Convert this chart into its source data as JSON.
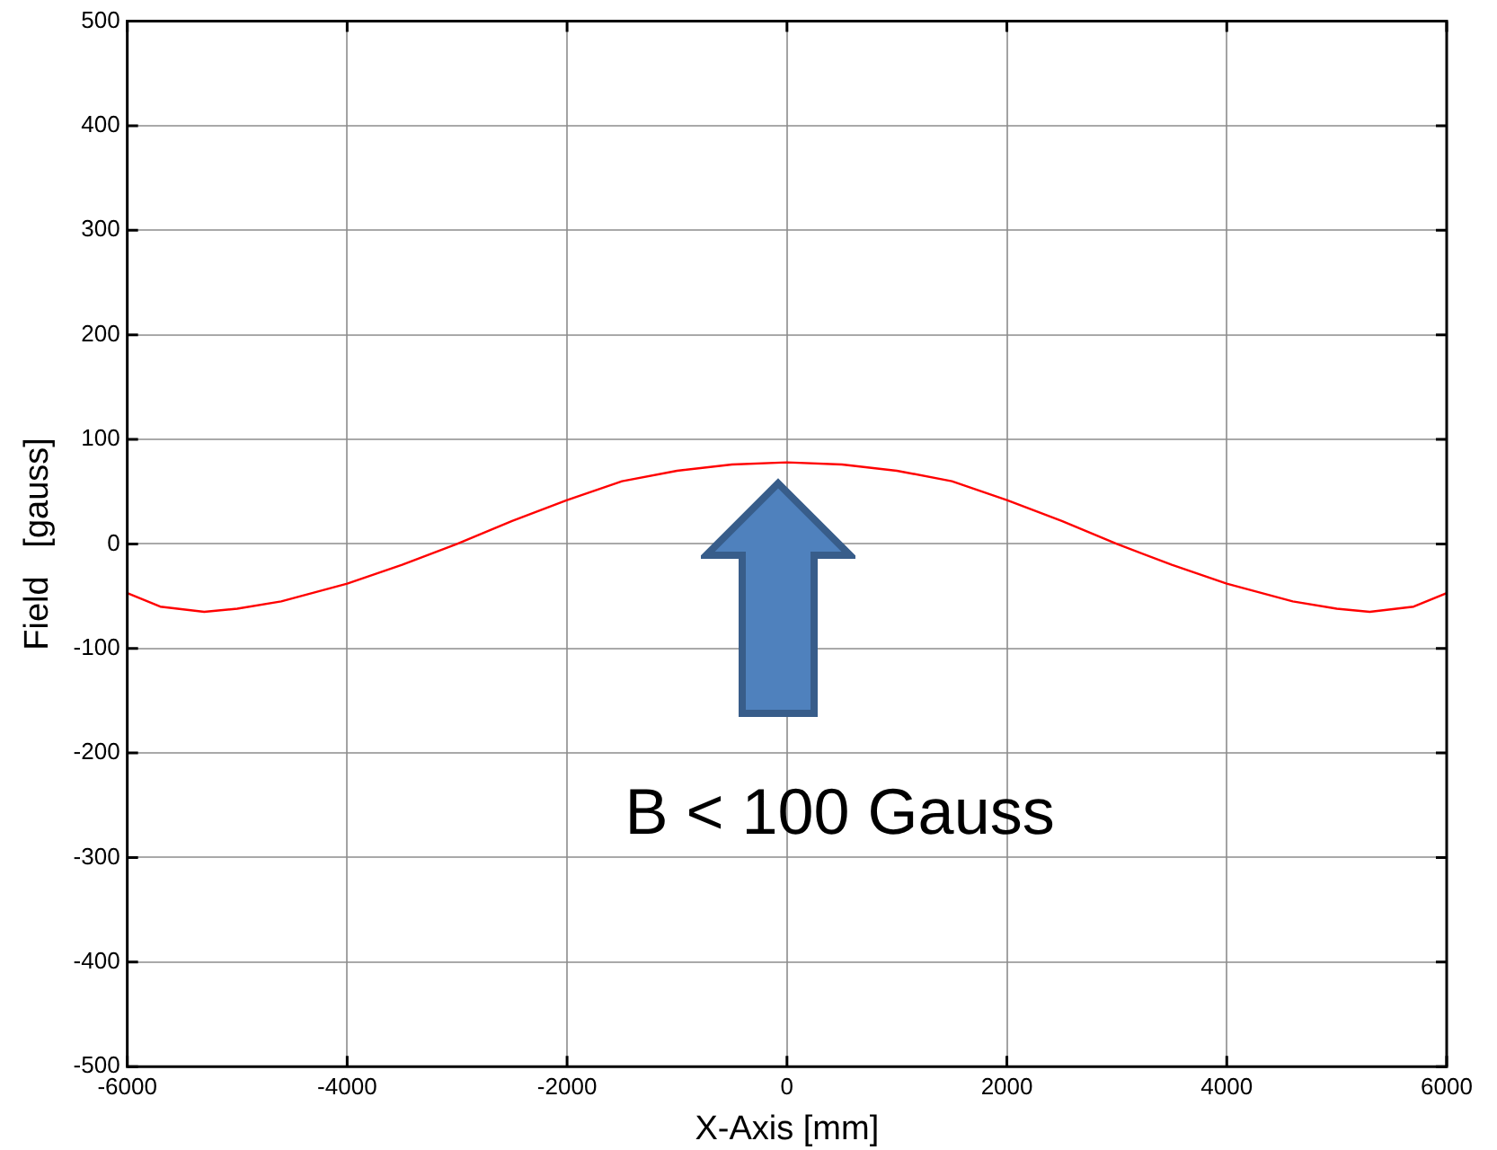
{
  "chart_data": {
    "type": "line",
    "xlabel": "X-Axis [mm]",
    "ylabel": "Field   [gauss]",
    "x": [
      -6000,
      -5700,
      -5300,
      -5000,
      -4600,
      -4000,
      -3500,
      -3000,
      -2500,
      -2000,
      -1500,
      -1000,
      -500,
      0,
      500,
      1000,
      1500,
      2000,
      2500,
      3000,
      3500,
      4000,
      4600,
      5000,
      5300,
      5700,
      6000
    ],
    "series": [
      {
        "color": "#ff0000",
        "values": [
          -47,
          -60,
          -65,
          -62,
          -55,
          -38,
          -20,
          0,
          22,
          42,
          60,
          70,
          76,
          78,
          76,
          70,
          60,
          42,
          22,
          0,
          -20,
          -38,
          -55,
          -62,
          -65,
          -60,
          -47
        ]
      }
    ],
    "xlim": [
      -6000,
      6000
    ],
    "xticks": [
      -6000,
      -4000,
      -2000,
      0,
      2000,
      4000,
      6000
    ],
    "ylim": [
      -500,
      500
    ],
    "yticks": [
      -500,
      -400,
      -300,
      -200,
      -100,
      0,
      100,
      200,
      300,
      400,
      500
    ],
    "grid": true,
    "marker": "none",
    "line_style": "solid",
    "annotations": [
      "B < 100 Gauss"
    ]
  }
}
